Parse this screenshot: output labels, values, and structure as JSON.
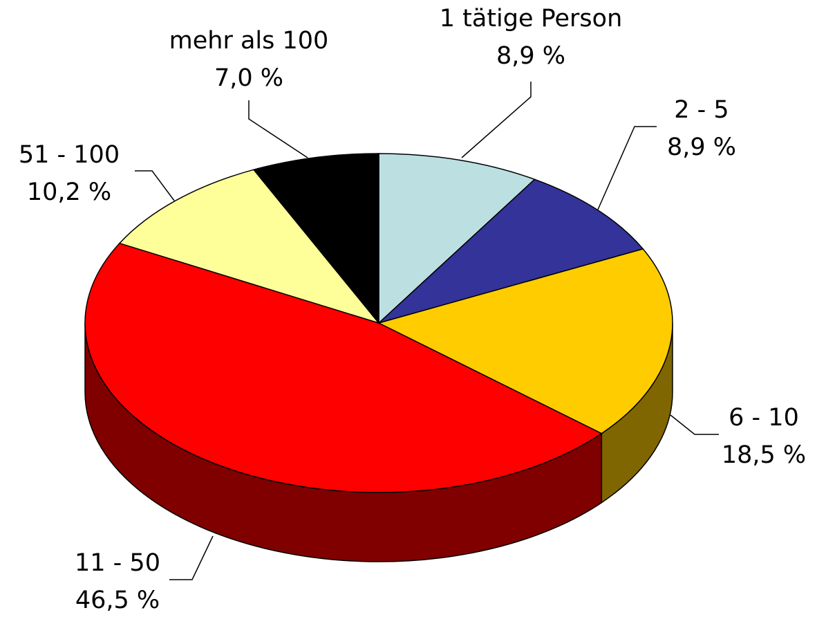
{
  "chart_data": {
    "type": "pie",
    "categories": [
      "1 tätige Person",
      "2 - 5",
      "6 - 10",
      "11 - 50",
      "51 - 100",
      "mehr als 100"
    ],
    "values": [
      8.9,
      8.9,
      18.5,
      46.5,
      10.2,
      7.0
    ],
    "value_labels": [
      "8,9 %",
      "8,9 %",
      "18,5 %",
      "46,5 %",
      "10,2 %",
      "7,0 %"
    ],
    "colors": [
      "#bce0e2",
      "#333399",
      "#ffcc00",
      "#ff0000",
      "#ffff99",
      "#000000"
    ]
  }
}
